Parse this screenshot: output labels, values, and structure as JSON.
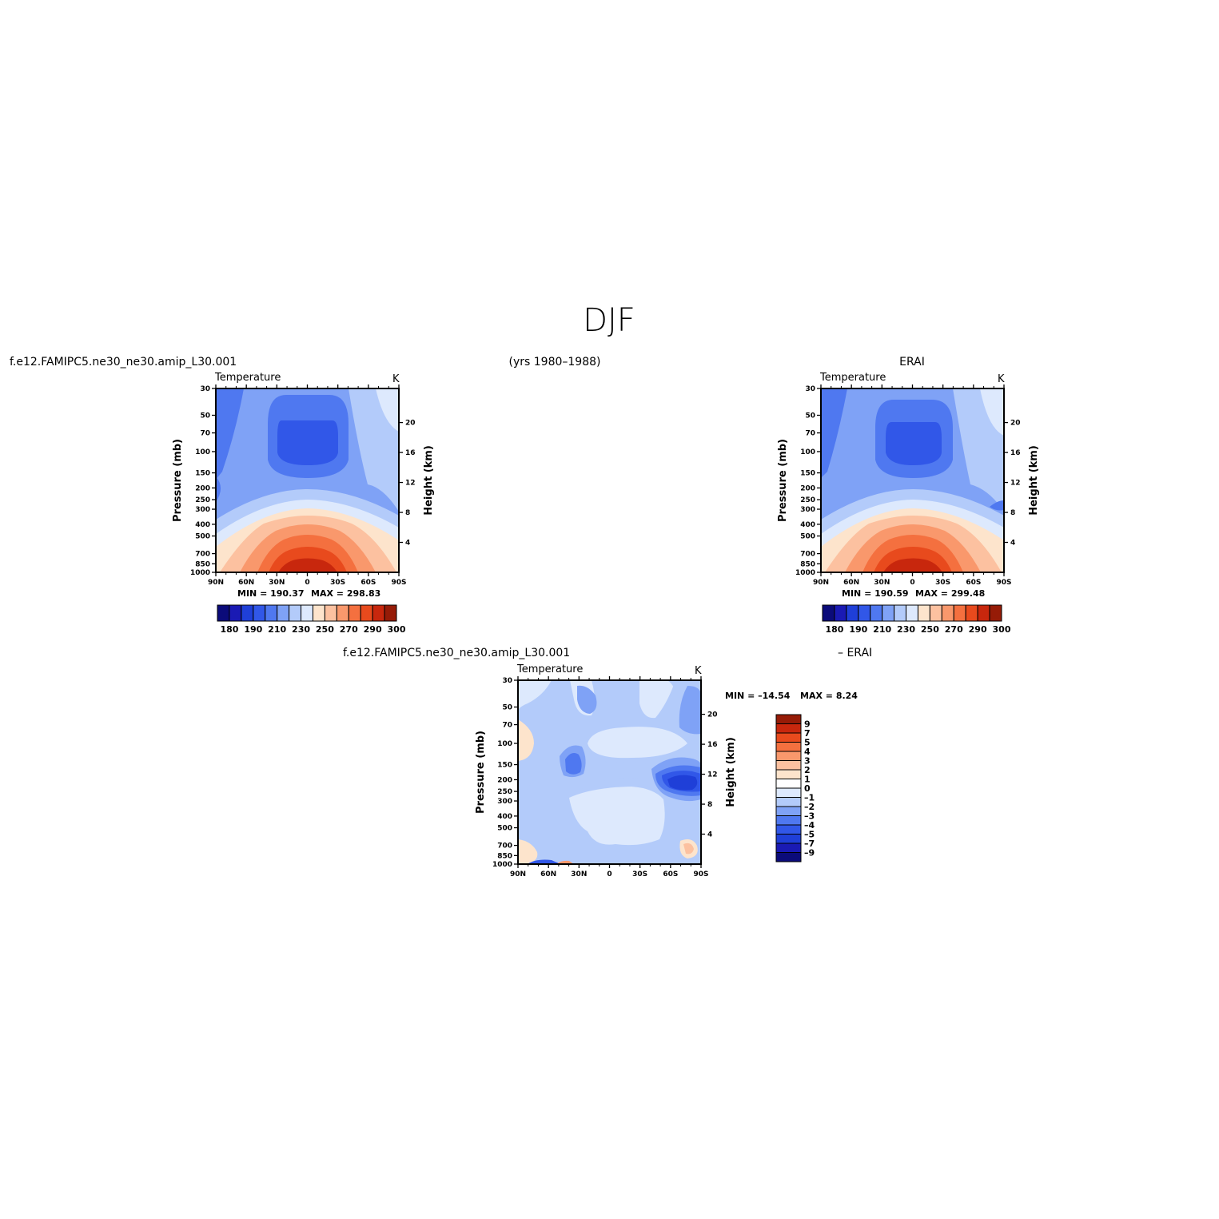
{
  "figure": {
    "title": "DJF",
    "case_name": "f.e12.FAMIPC5.ne30_ne30.amip_L30.001",
    "years": "(yrs 1980–1988)",
    "obs_name": "ERAI",
    "diff_case_name": "f.e12.FAMIPC5.ne30_ne30.amip_L30.001",
    "diff_obs_name": "– ERAI"
  },
  "colors": {
    "temp_palette": [
      "#0b0b7a",
      "#1a1ab4",
      "#1f3fd8",
      "#3157e8",
      "#4f78f0",
      "#7fa2f6",
      "#b3cbfa",
      "#dde9fd",
      "#fde4cc",
      "#fcc1a0",
      "#f9986c",
      "#f4703f",
      "#e84a1d",
      "#c8270d",
      "#961b07"
    ],
    "diff_palette": [
      "#0b0b7a",
      "#1a1ab4",
      "#1f3fd8",
      "#3157e8",
      "#4f78f0",
      "#7fa2f6",
      "#b3cbfa",
      "#dde9fd",
      "#ffffff",
      "#fde4cc",
      "#fcc1a0",
      "#f9986c",
      "#f4703f",
      "#e84a1d",
      "#c8270d",
      "#961b07"
    ]
  },
  "chart_data": [
    {
      "type": "heatmap",
      "panel": "model",
      "title": "Temperature",
      "units": "K",
      "ylabel": "Pressure (mb)",
      "y2label": "Height (km)",
      "x_ticks": [
        "90N",
        "60N",
        "30N",
        "0",
        "30S",
        "60S",
        "90S"
      ],
      "y_ticks": [
        30,
        50,
        70,
        100,
        150,
        200,
        250,
        300,
        400,
        500,
        700,
        850,
        1000
      ],
      "y2_ticks": [
        20,
        16,
        12,
        8,
        4
      ],
      "ylim": [
        1000,
        30
      ],
      "log_y": true,
      "min_label": "MIN = 190.37",
      "max_label": "MAX = 298.83",
      "colorbar_labels": [
        "180",
        "190",
        "210",
        "230",
        "250",
        "270",
        "290",
        "300"
      ]
    },
    {
      "type": "heatmap",
      "panel": "obs",
      "title": "Temperature",
      "units": "K",
      "ylabel": "Pressure (mb)",
      "y2label": "Height (km)",
      "x_ticks": [
        "90N",
        "60N",
        "30N",
        "0",
        "30S",
        "60S",
        "90S"
      ],
      "y_ticks": [
        30,
        50,
        70,
        100,
        150,
        200,
        250,
        300,
        400,
        500,
        700,
        850,
        1000
      ],
      "y2_ticks": [
        20,
        16,
        12,
        8,
        4
      ],
      "ylim": [
        1000,
        30
      ],
      "log_y": true,
      "min_label": "MIN = 190.59",
      "max_label": "MAX = 299.48",
      "colorbar_labels": [
        "180",
        "190",
        "210",
        "230",
        "250",
        "270",
        "290",
        "300"
      ]
    },
    {
      "type": "heatmap",
      "panel": "diff",
      "title": "Temperature",
      "units": "K",
      "ylabel": "Pressure (mb)",
      "y2label": "Height (km)",
      "x_ticks": [
        "90N",
        "60N",
        "30N",
        "0",
        "30S",
        "60S",
        "90S"
      ],
      "y_ticks": [
        30,
        50,
        70,
        100,
        150,
        200,
        250,
        300,
        400,
        500,
        700,
        850,
        1000
      ],
      "y2_ticks": [
        20,
        16,
        12,
        8,
        4
      ],
      "ylim": [
        1000,
        30
      ],
      "log_y": true,
      "min_label": "MIN = –14.54",
      "max_label": "MAX = 8.24",
      "colorbar_labels": [
        "9",
        "7",
        "5",
        "4",
        "3",
        "2",
        "1",
        "0",
        "–1",
        "–2",
        "–3",
        "–4",
        "–5",
        "–7",
        "–9"
      ]
    }
  ]
}
